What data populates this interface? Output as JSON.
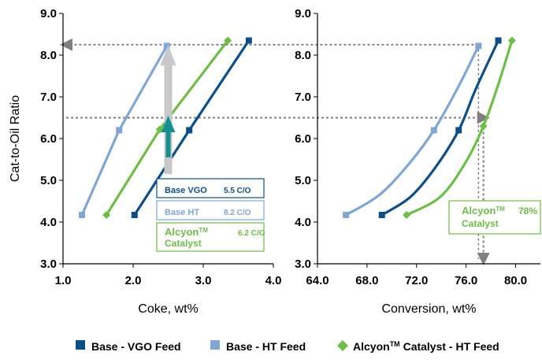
{
  "colors": {
    "base_vgo": "#0b4f8a",
    "base_ht": "#7ea7d6",
    "alcyon": "#6cbf45",
    "arrow_gray": "#c8c8c8",
    "arrow_teal": "#14908f",
    "guide": "#7f7f7f"
  },
  "legend": {
    "items": [
      {
        "marker": "square",
        "color_key": "base_vgo",
        "label": "Base - VGO Feed",
        "sup": "",
        "rest": ""
      },
      {
        "marker": "square",
        "color_key": "base_ht",
        "label": "Base - HT Feed",
        "sup": "",
        "rest": ""
      },
      {
        "marker": "diamond",
        "color_key": "alcyon",
        "label": "Alcyon",
        "sup": "TM",
        "rest": " Catalyst - HT Feed"
      }
    ]
  },
  "chart_data": [
    {
      "type": "line",
      "xlabel": "Coke, wt%",
      "ylabel": "Cat-to-Oil Ratio",
      "xlim": [
        1.0,
        4.0
      ],
      "ylim": [
        3.0,
        9.0
      ],
      "x_ticks": [
        "1.0",
        "2.0",
        "3.0",
        "4.0"
      ],
      "y_ticks": [
        "3.0",
        "4.0",
        "5.0",
        "6.0",
        "7.0",
        "8.0",
        "9.0"
      ],
      "series": [
        {
          "name": "Base - VGO Feed",
          "color_key": "base_vgo",
          "marker": "square",
          "points": [
            [
              2.02,
              4.17
            ],
            [
              2.8,
              6.2
            ],
            [
              3.65,
              8.35
            ]
          ]
        },
        {
          "name": "Base - HT Feed",
          "color_key": "base_ht",
          "marker": "square",
          "points": [
            [
              1.27,
              4.17
            ],
            [
              1.8,
              6.2
            ],
            [
              2.48,
              8.22
            ]
          ]
        },
        {
          "name": "Alcyon Catalyst - HT Feed",
          "color_key": "alcyon",
          "marker": "diamond",
          "points": [
            [
              1.62,
              4.17
            ],
            [
              2.38,
              6.22
            ],
            [
              3.35,
              8.35
            ]
          ]
        }
      ],
      "annotations": [
        {
          "line1": "Base VGO",
          "sup": "",
          "value": "5.5 C/O",
          "line2": "",
          "color_key": "base_vgo"
        },
        {
          "line1": "Base HT",
          "sup": "",
          "value": "8.2 C/O",
          "line2": "",
          "color_key": "base_ht"
        },
        {
          "line1": "Alcyon",
          "sup": "TM",
          "value": "6.2 C/O",
          "line2": "Catalyst",
          "color_key": "alcyon"
        }
      ]
    },
    {
      "type": "line",
      "xlabel": "Conversion, wt%",
      "ylabel": "",
      "xlim": [
        64.0,
        82.0
      ],
      "ylim": [
        3.0,
        9.0
      ],
      "x_ticks": [
        "64.0",
        "68.0",
        "72.0",
        "76.0",
        "80.0"
      ],
      "y_ticks": [
        "3.0",
        "4.0",
        "5.0",
        "6.0",
        "7.0",
        "8.0",
        "9.0"
      ],
      "series": [
        {
          "name": "Base - VGO Feed",
          "color_key": "base_vgo",
          "marker": "square",
          "points": [
            [
              69.2,
              4.17
            ],
            [
              71.5,
              4.6
            ],
            [
              73.5,
              5.3
            ],
            [
              75.4,
              6.2
            ],
            [
              76.8,
              7.2
            ],
            [
              78.6,
              8.35
            ]
          ]
        },
        {
          "name": "Base - HT Feed",
          "color_key": "base_ht",
          "marker": "square",
          "points": [
            [
              66.3,
              4.17
            ],
            [
              69.0,
              4.65
            ],
            [
              71.4,
              5.4
            ],
            [
              73.4,
              6.2
            ],
            [
              75.3,
              7.2
            ],
            [
              77.0,
              8.22
            ]
          ]
        },
        {
          "name": "Alcyon Catalyst - HT Feed",
          "color_key": "alcyon",
          "marker": "diamond",
          "points": [
            [
              71.2,
              4.17
            ],
            [
              73.9,
              4.6
            ],
            [
              75.9,
              5.4
            ],
            [
              77.4,
              6.3
            ],
            [
              78.6,
              7.3
            ],
            [
              79.7,
              8.35
            ]
          ]
        }
      ],
      "annotations": [
        {
          "line1": "Alcyon",
          "sup": "TM",
          "value": "78%",
          "line2": "Catalyst",
          "color_key": "alcyon"
        }
      ]
    }
  ]
}
